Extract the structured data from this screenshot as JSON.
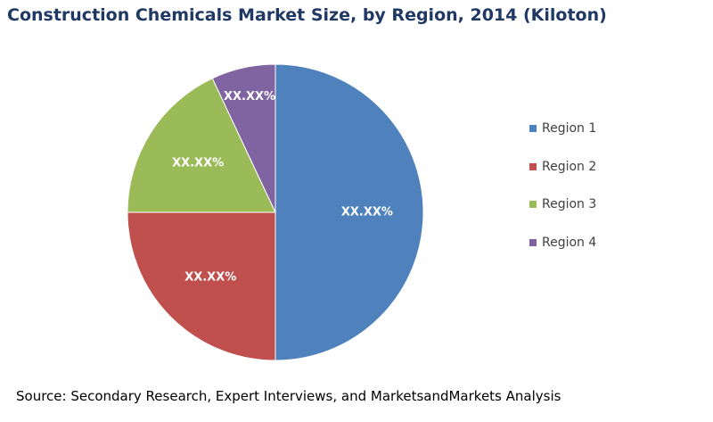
{
  "chart_data": {
    "type": "pie",
    "title": "Construction Chemicals Market Size, by Region, 2014 (Kiloton)",
    "categories": [
      "Region 1",
      "Region 2",
      "Region 3",
      "Region 4"
    ],
    "values": [
      50,
      25,
      18,
      7
    ],
    "data_labels": [
      "XX.XX%",
      "XX.XX%",
      "XX.XX%",
      "XX.XX%"
    ],
    "colors": [
      "#4f81bd",
      "#c0504d",
      "#9bbb59",
      "#8064a2"
    ],
    "legend_position": "right",
    "start_angle": "top",
    "direction": "clockwise"
  },
  "source": "Source: Secondary Research, Expert Interviews, and MarketsandMarkets Analysis"
}
